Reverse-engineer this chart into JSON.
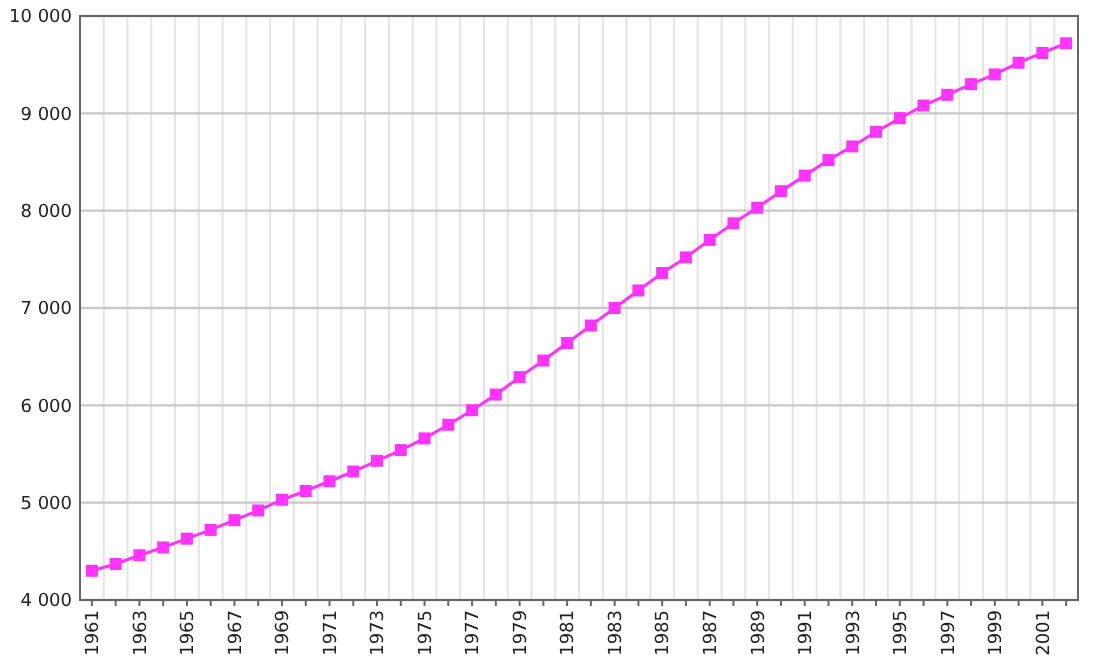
{
  "chart_data": {
    "type": "line",
    "categories": [
      "1961",
      null,
      "1963",
      null,
      "1965",
      null,
      "1967",
      null,
      "1969",
      null,
      "1971",
      null,
      "1973",
      null,
      "1975",
      null,
      "1977",
      null,
      "1979",
      null,
      "1981",
      null,
      "1983",
      null,
      "1985",
      null,
      "1987",
      null,
      "1989",
      null,
      "1991",
      null,
      "1993",
      null,
      "1995",
      null,
      "1997",
      null,
      "1999",
      null,
      "2001",
      null
    ],
    "series": [
      {
        "color": "#ff33ff",
        "values": [
          4300,
          4370,
          4460,
          4540,
          4630,
          4720,
          4820,
          4920,
          5030,
          5120,
          5220,
          5320,
          5430,
          5540,
          5660,
          5800,
          5950,
          6110,
          6290,
          6460,
          6640,
          6820,
          7000,
          7180,
          7360,
          7520,
          7700,
          7870,
          8030,
          8200,
          8360,
          8520,
          8660,
          8810,
          8950,
          9080,
          9190,
          9300,
          9400,
          9520,
          9620,
          9720
        ]
      }
    ],
    "ylim": [
      4000,
      10000
    ],
    "yticks": [
      {
        "value": 4000,
        "label": "4 000"
      },
      {
        "value": 5000,
        "label": "5 000"
      },
      {
        "value": 6000,
        "label": "6 000"
      },
      {
        "value": 7000,
        "label": "7 000"
      },
      {
        "value": 8000,
        "label": "8 000"
      },
      {
        "value": 9000,
        "label": "9 000"
      },
      {
        "value": 10000,
        "label": "10 000"
      }
    ],
    "grid": true,
    "marker": "square",
    "line_style": "solid"
  }
}
